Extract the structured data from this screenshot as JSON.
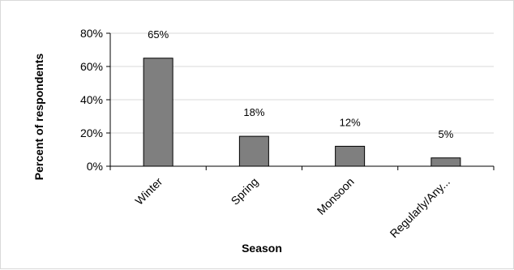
{
  "chart_data": {
    "type": "bar",
    "title": "",
    "xlabel": "Season",
    "ylabel": "Percent of respondents",
    "categories": [
      "Winter",
      "Spring",
      "Monsoon",
      "Regularly/Any..."
    ],
    "values": [
      65,
      18,
      12,
      5
    ],
    "data_labels": [
      "65%",
      "18%",
      "12%",
      "5%"
    ],
    "ylim": [
      0,
      80
    ],
    "yticks": [
      0,
      20,
      40,
      60,
      80
    ],
    "ytick_labels": [
      "0%",
      "20%",
      "40%",
      "60%",
      "80%"
    ],
    "grid": true,
    "legend": "none",
    "colors": {
      "bar_fill": "#7f7f7f",
      "bar_stroke": "#000000",
      "grid": "#d9d9d9",
      "axis": "#000000"
    }
  }
}
